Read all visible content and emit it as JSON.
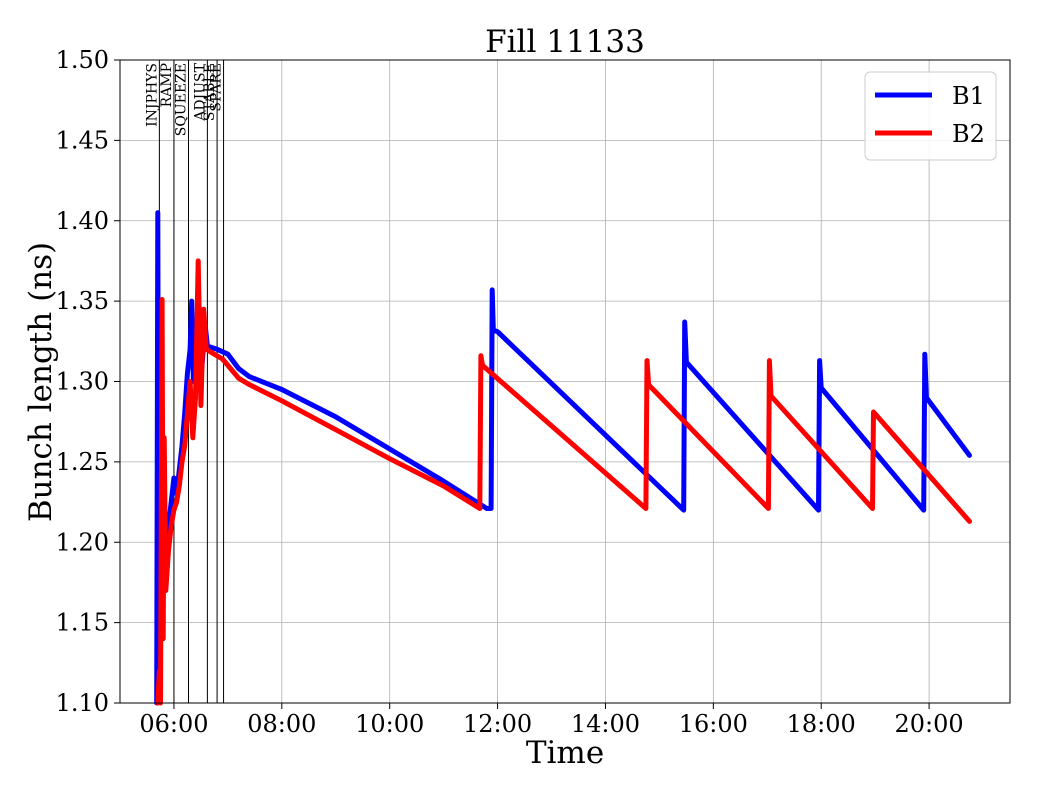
{
  "chart_data": {
    "type": "line",
    "title": "Fill 11133",
    "xlabel": "Time",
    "ylabel": "Bunch length (ns)",
    "x_unit": "hours",
    "xlim": [
      5.0,
      21.5
    ],
    "ylim": [
      1.1,
      1.5
    ],
    "x_ticks": [
      {
        "value": 6,
        "label": "06:00"
      },
      {
        "value": 8,
        "label": "08:00"
      },
      {
        "value": 10,
        "label": "10:00"
      },
      {
        "value": 12,
        "label": "12:00"
      },
      {
        "value": 14,
        "label": "14:00"
      },
      {
        "value": 16,
        "label": "16:00"
      },
      {
        "value": 18,
        "label": "18:00"
      },
      {
        "value": 20,
        "label": "20:00"
      }
    ],
    "y_ticks": [
      "1.10",
      "1.15",
      "1.20",
      "1.25",
      "1.30",
      "1.35",
      "1.40",
      "1.45",
      "1.50"
    ],
    "grid": true,
    "legend_position": "top-right",
    "phases": [
      {
        "label": "INJPHYS",
        "x": 5.73
      },
      {
        "label": "RAMP",
        "x": 6.0
      },
      {
        "label": "SQUEEZE",
        "x": 6.27
      },
      {
        "label": "ADJUST",
        "x": 6.62
      },
      {
        "label": "STABLE",
        "x": 6.8
      },
      {
        "label": "SPARE",
        "x": 6.92
      }
    ],
    "series": [
      {
        "name": "B1",
        "color": "#0000ff",
        "points": [
          [
            5.68,
            1.1
          ],
          [
            5.7,
            1.405
          ],
          [
            5.72,
            1.12
          ],
          [
            5.75,
            1.15
          ],
          [
            5.8,
            1.17
          ],
          [
            5.85,
            1.19
          ],
          [
            5.9,
            1.21
          ],
          [
            5.95,
            1.225
          ],
          [
            6.0,
            1.24
          ],
          [
            6.05,
            1.23
          ],
          [
            6.1,
            1.245
          ],
          [
            6.15,
            1.26
          ],
          [
            6.2,
            1.28
          ],
          [
            6.25,
            1.305
          ],
          [
            6.3,
            1.32
          ],
          [
            6.33,
            1.35
          ],
          [
            6.36,
            1.3
          ],
          [
            6.42,
            1.32
          ],
          [
            6.48,
            1.295
          ],
          [
            6.52,
            1.31
          ],
          [
            6.58,
            1.335
          ],
          [
            6.62,
            1.322
          ],
          [
            6.8,
            1.32
          ],
          [
            7.0,
            1.317
          ],
          [
            7.2,
            1.308
          ],
          [
            7.4,
            1.303
          ],
          [
            8.0,
            1.295
          ],
          [
            9.0,
            1.278
          ],
          [
            10.0,
            1.258
          ],
          [
            11.0,
            1.238
          ],
          [
            11.8,
            1.221
          ],
          [
            11.88,
            1.221
          ],
          [
            11.9,
            1.357
          ],
          [
            11.92,
            1.332
          ],
          [
            12.0,
            1.331
          ],
          [
            15.45,
            1.22
          ],
          [
            15.47,
            1.337
          ],
          [
            15.5,
            1.312
          ],
          [
            17.95,
            1.22
          ],
          [
            17.97,
            1.313
          ],
          [
            18.0,
            1.296
          ],
          [
            19.9,
            1.22
          ],
          [
            19.92,
            1.317
          ],
          [
            19.95,
            1.29
          ],
          [
            20.75,
            1.254
          ]
        ]
      },
      {
        "name": "B2",
        "color": "#ff0000",
        "points": [
          [
            5.7,
            1.1
          ],
          [
            5.73,
            1.12
          ],
          [
            5.75,
            1.1
          ],
          [
            5.78,
            1.351
          ],
          [
            5.8,
            1.14
          ],
          [
            5.82,
            1.265
          ],
          [
            5.85,
            1.17
          ],
          [
            5.9,
            1.195
          ],
          [
            5.95,
            1.21
          ],
          [
            6.0,
            1.22
          ],
          [
            6.05,
            1.225
          ],
          [
            6.1,
            1.235
          ],
          [
            6.15,
            1.25
          ],
          [
            6.2,
            1.26
          ],
          [
            6.25,
            1.28
          ],
          [
            6.3,
            1.3
          ],
          [
            6.35,
            1.265
          ],
          [
            6.4,
            1.29
          ],
          [
            6.45,
            1.375
          ],
          [
            6.5,
            1.285
          ],
          [
            6.55,
            1.345
          ],
          [
            6.6,
            1.32
          ],
          [
            6.7,
            1.318
          ],
          [
            6.9,
            1.314
          ],
          [
            7.0,
            1.31
          ],
          [
            7.2,
            1.302
          ],
          [
            7.4,
            1.298
          ],
          [
            8.0,
            1.288
          ],
          [
            9.0,
            1.27
          ],
          [
            10.0,
            1.252
          ],
          [
            11.0,
            1.235
          ],
          [
            11.67,
            1.221
          ],
          [
            11.69,
            1.316
          ],
          [
            11.72,
            1.31
          ],
          [
            14.75,
            1.221
          ],
          [
            14.77,
            1.313
          ],
          [
            14.8,
            1.298
          ],
          [
            17.02,
            1.221
          ],
          [
            17.04,
            1.313
          ],
          [
            17.07,
            1.291
          ],
          [
            18.95,
            1.221
          ],
          [
            18.97,
            1.281
          ],
          [
            20.75,
            1.213
          ]
        ]
      }
    ]
  }
}
